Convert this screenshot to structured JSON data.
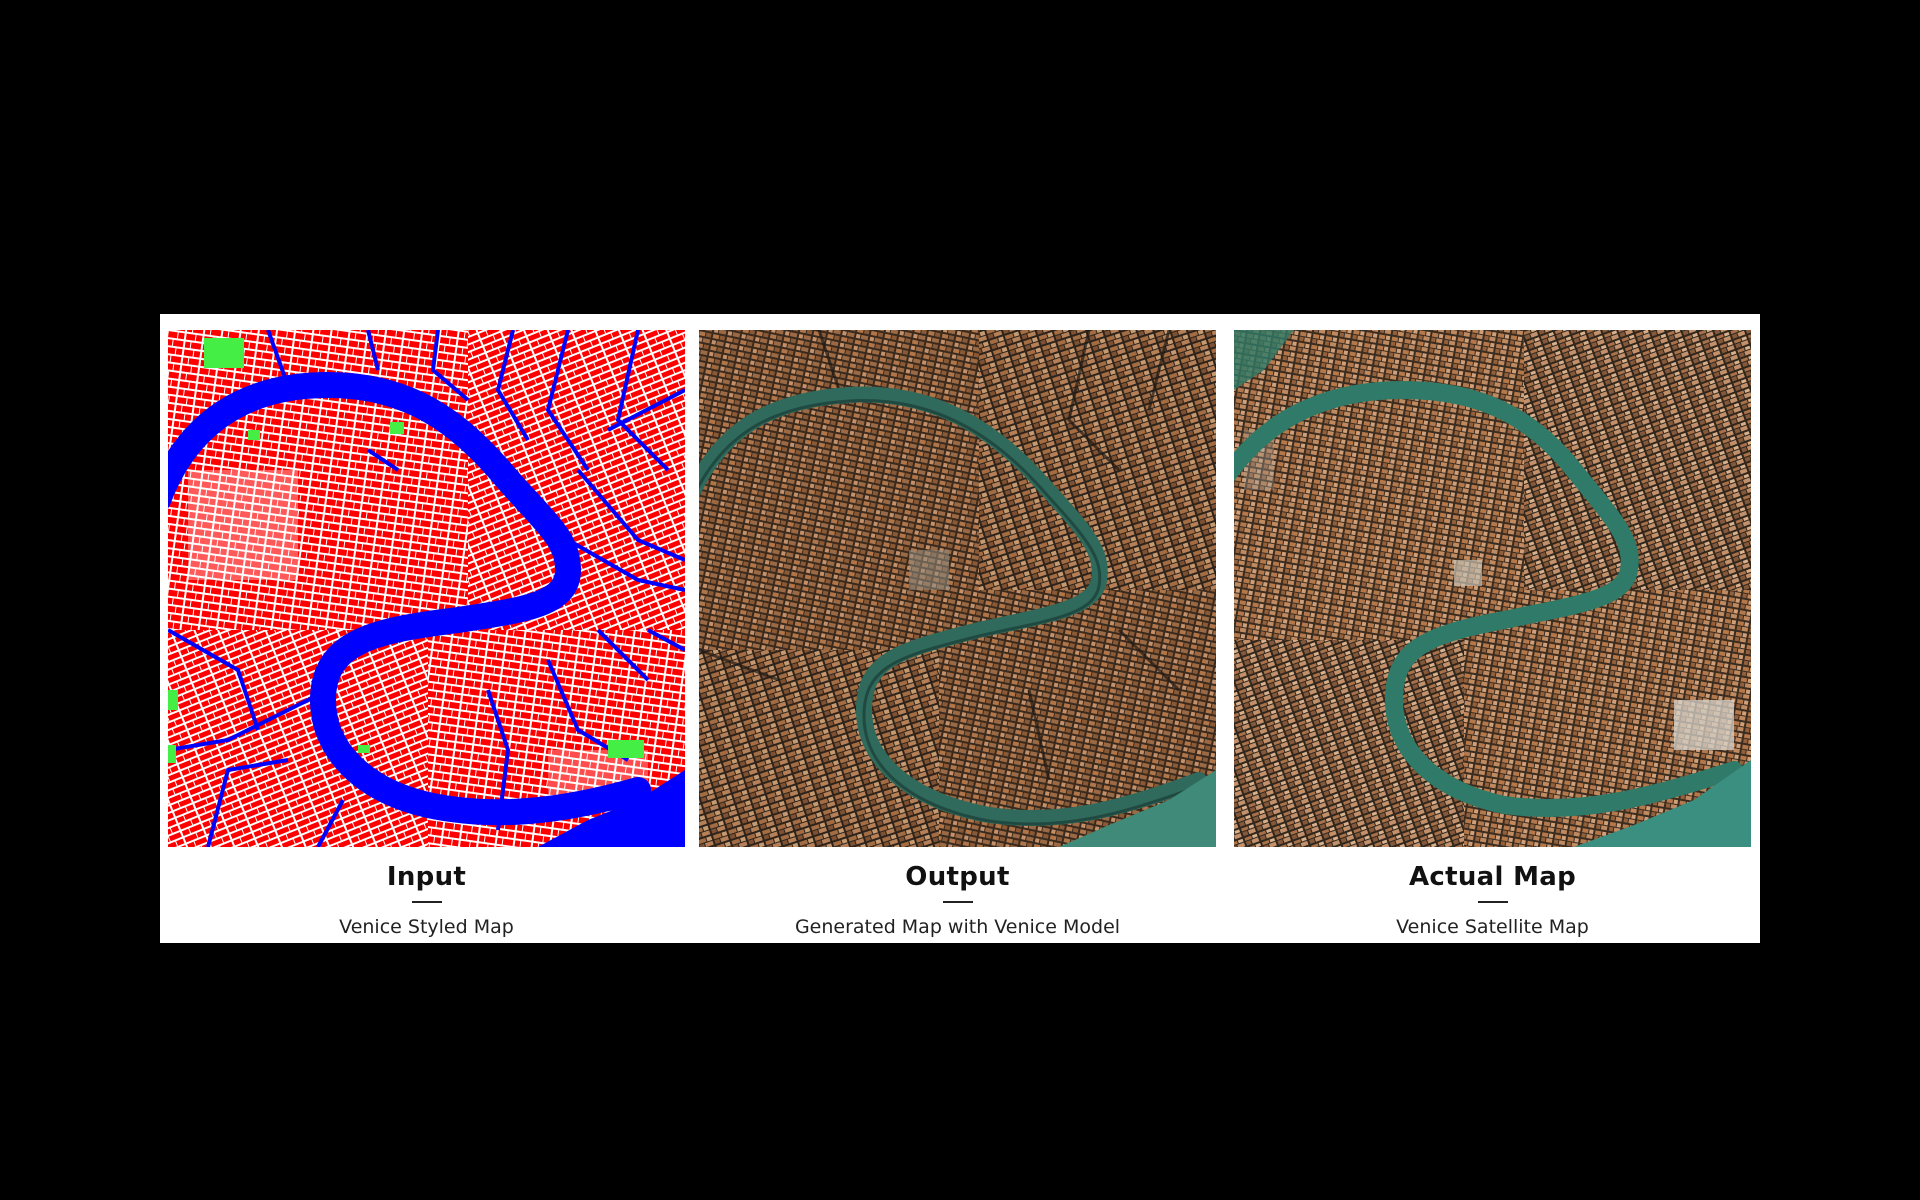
{
  "panels": [
    {
      "title": "Input",
      "subtitle": "Venice Styled Map",
      "style": "styled"
    },
    {
      "title": "Output",
      "subtitle": "Generated Map with Venice Model",
      "style": "satellite-generated"
    },
    {
      "title": "Actual Map",
      "subtitle": "Venice Satellite Map",
      "style": "satellite-actual"
    }
  ],
  "colors": {
    "background": "#000000",
    "card": "#ffffff",
    "styled_buildings": "#ff0000",
    "styled_water": "#0000ff",
    "styled_parks": "#44ee44",
    "styled_streets": "#ffffff",
    "satellite_roofs": "#8a5a36",
    "satellite_water": "#2f7a68"
  },
  "icons": []
}
